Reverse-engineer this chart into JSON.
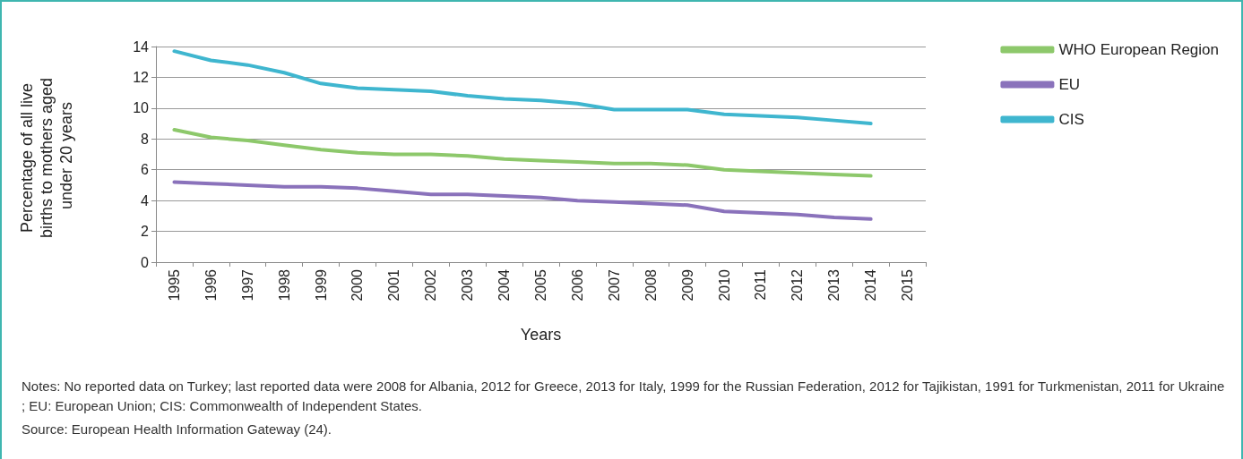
{
  "chart_data": {
    "type": "line",
    "xlabel": "Years",
    "ylabel": "Percentage of all live births to mothers aged under 20 years",
    "categories": [
      "1995",
      "1996",
      "1997",
      "1998",
      "1999",
      "2000",
      "2001",
      "2002",
      "2003",
      "2004",
      "2005",
      "2006",
      "2007",
      "2008",
      "2009",
      "2010",
      "2011",
      "2012",
      "2013",
      "2014",
      "2015"
    ],
    "series": [
      {
        "name": "WHO European Region",
        "color": "#8dc86b",
        "values": [
          8.6,
          8.1,
          7.9,
          7.6,
          7.3,
          7.1,
          7.0,
          7.0,
          6.9,
          6.7,
          6.6,
          6.5,
          6.4,
          6.4,
          6.3,
          6.0,
          5.9,
          5.8,
          5.7,
          5.6,
          null
        ]
      },
      {
        "name": "EU",
        "color": "#8a72bb",
        "values": [
          5.2,
          5.1,
          5.0,
          4.9,
          4.9,
          4.8,
          4.6,
          4.4,
          4.4,
          4.3,
          4.2,
          4.0,
          3.9,
          3.8,
          3.7,
          3.3,
          3.2,
          3.1,
          2.9,
          2.8,
          null
        ]
      },
      {
        "name": "CIS",
        "color": "#3fb6cf",
        "values": [
          13.7,
          13.1,
          12.8,
          12.3,
          11.6,
          11.3,
          11.2,
          11.1,
          10.8,
          10.6,
          10.5,
          10.3,
          9.9,
          9.9,
          9.9,
          9.6,
          9.5,
          9.4,
          9.2,
          9.0,
          null
        ]
      }
    ],
    "ylim": [
      0,
      14
    ],
    "yticks": [
      0,
      2,
      4,
      6,
      8,
      10,
      12,
      14
    ],
    "grid": "y",
    "legend": "right",
    "marker": "none",
    "line_style": "solid",
    "annotations": [
      "Notes: No reported data on Turkey; last reported data were 2008 for Albania, 2012 for Greece, 2013 for Italy, 1999 for the Russian Federation, 2012 for Tajikistan, 1991 for Turkmenistan, 2011 for Ukraine; EU: European Union; CIS: Commonwealth of Independent States.",
      "Source: European Health Information Gateway (24)."
    ]
  }
}
